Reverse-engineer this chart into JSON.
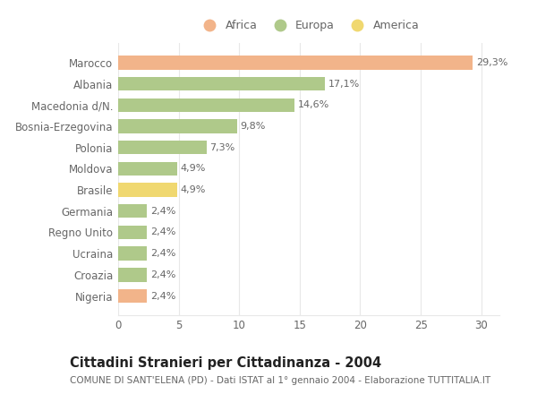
{
  "categories": [
    "Marocco",
    "Albania",
    "Macedonia d/N.",
    "Bosnia-Erzegovina",
    "Polonia",
    "Moldova",
    "Brasile",
    "Germania",
    "Regno Unito",
    "Ucraina",
    "Croazia",
    "Nigeria"
  ],
  "values": [
    29.3,
    17.1,
    14.6,
    9.8,
    7.3,
    4.9,
    4.9,
    2.4,
    2.4,
    2.4,
    2.4,
    2.4
  ],
  "labels": [
    "29,3%",
    "17,1%",
    "14,6%",
    "9,8%",
    "7,3%",
    "4,9%",
    "4,9%",
    "2,4%",
    "2,4%",
    "2,4%",
    "2,4%",
    "2,4%"
  ],
  "colors": [
    "#f2b48a",
    "#afc98a",
    "#afc98a",
    "#afc98a",
    "#afc98a",
    "#afc98a",
    "#f0d870",
    "#afc98a",
    "#afc98a",
    "#afc98a",
    "#afc98a",
    "#f2b48a"
  ],
  "legend_labels": [
    "Africa",
    "Europa",
    "America"
  ],
  "legend_colors": [
    "#f2b48a",
    "#afc98a",
    "#f0d870"
  ],
  "title": "Cittadini Stranieri per Cittadinanza - 2004",
  "subtitle": "COMUNE DI SANT'ELENA (PD) - Dati ISTAT al 1° gennaio 2004 - Elaborazione TUTTITALIA.IT",
  "xlim": [
    0,
    31.5
  ],
  "xticks": [
    0,
    5,
    10,
    15,
    20,
    25,
    30
  ],
  "background_color": "#ffffff",
  "bar_height": 0.65,
  "label_fontsize": 8,
  "tick_fontsize": 8.5,
  "title_fontsize": 10.5,
  "subtitle_fontsize": 7.5,
  "grid_color": "#e8e8e8",
  "text_color": "#666666",
  "label_color": "#666666"
}
